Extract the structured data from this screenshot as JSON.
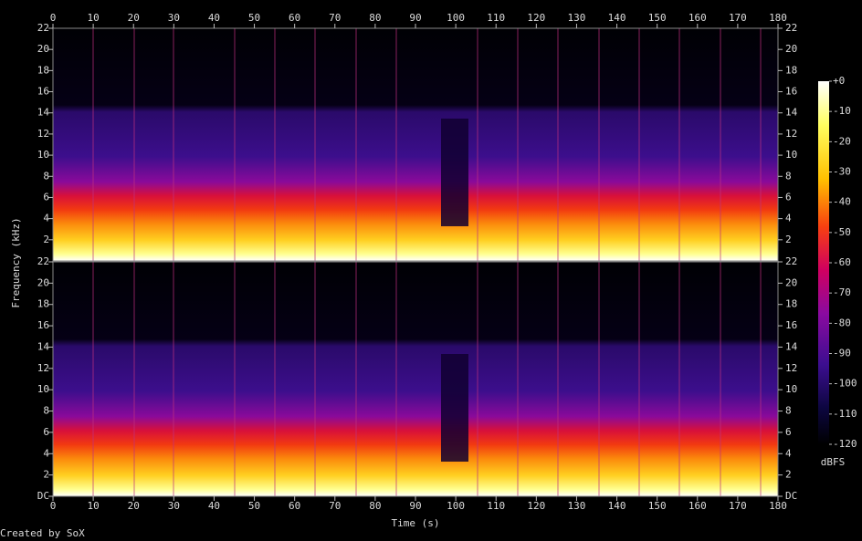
{
  "chart_data": {
    "type": "spectrogram",
    "xlabel": "Time (s)",
    "ylabel": "Frequency (kHz)",
    "credit": "Created by SoX",
    "xlim": [
      0,
      180
    ],
    "xticks": [
      0,
      10,
      20,
      30,
      40,
      50,
      60,
      70,
      80,
      90,
      100,
      110,
      120,
      130,
      140,
      150,
      160,
      170,
      180
    ],
    "ylim": [
      0,
      22
    ],
    "channels": [
      {
        "yticks": [
          2,
          4,
          6,
          8,
          10,
          12,
          14,
          16,
          18,
          20,
          22
        ]
      },
      {
        "yticks": [
          {
            "value": 0,
            "label": "DC"
          },
          2,
          4,
          6,
          8,
          10,
          12,
          14,
          16,
          18,
          20,
          22
        ]
      }
    ],
    "colorbar": {
      "label": "dBFS",
      "clim": [
        -120,
        0
      ],
      "ticks": [
        {
          "value": 0,
          "label": "+0"
        },
        -10,
        -20,
        -30,
        -40,
        -50,
        -60,
        -70,
        -80,
        -90,
        -100,
        -110,
        -120
      ]
    }
  }
}
